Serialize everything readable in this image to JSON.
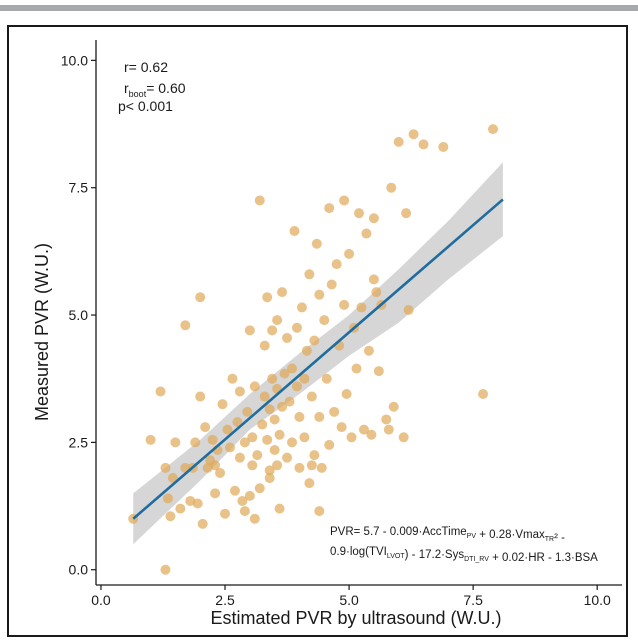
{
  "chart_data": {
    "type": "scatter",
    "title": "",
    "xlabel": "Estimated PVR by ultrasound (W.U.)",
    "ylabel": "Measured PVR (W.U.)",
    "xlim": [
      -0.1,
      10.5
    ],
    "ylim": [
      -0.3,
      10.4
    ],
    "x_ticks": [
      "0.0",
      "2.5",
      "5.0",
      "7.5",
      "10.0"
    ],
    "y_ticks": [
      "0.0",
      "2.5",
      "5.0",
      "7.5",
      "10.0"
    ],
    "x_tick_values": [
      0,
      2.5,
      5,
      7.5,
      10
    ],
    "y_tick_values": [
      0,
      2.5,
      5,
      7.5,
      10
    ],
    "grid": false,
    "colors": {
      "points": "#e0a858",
      "fit_line": "#1f6c9e",
      "ci_band": "#c8c8c8"
    },
    "annotations": {
      "r": "r= 0.62",
      "r_boot_prefix": "r",
      "r_boot_sub": "boot",
      "r_boot_value": "= 0.60",
      "p": "p< 0.001"
    },
    "equation": {
      "line1": [
        {
          "t": "PVR= 5.7 - 0.009·AccTime"
        },
        {
          "t": "PV",
          "sub": true
        },
        {
          "t": " + 0.28·Vmax"
        },
        {
          "t": "TR",
          "sub": true
        },
        {
          "t": "² -"
        }
      ],
      "line2": [
        {
          "t": "0.9·log(TVI"
        },
        {
          "t": "LVOT",
          "sub": true
        },
        {
          "t": ") - 17.2·Sys"
        },
        {
          "t": "DTI_RV",
          "sub": true
        },
        {
          "t": " + 0.02·HR - 1.3·BSA"
        }
      ]
    },
    "regression": {
      "x": [
        0.65,
        8.1
      ],
      "y": [
        1.0,
        7.27
      ]
    },
    "ci_band": {
      "x": [
        0.65,
        2.0,
        3.0,
        4.0,
        5.0,
        6.0,
        7.0,
        8.1
      ],
      "upper": [
        1.5,
        2.55,
        3.45,
        4.25,
        5.0,
        5.9,
        6.85,
        8.0
      ],
      "lower": [
        0.5,
        1.75,
        2.75,
        3.45,
        4.2,
        4.85,
        5.7,
        6.55
      ]
    },
    "points": [
      [
        0.65,
        1.0
      ],
      [
        1.0,
        2.55
      ],
      [
        1.2,
        3.5
      ],
      [
        1.3,
        0.0
      ],
      [
        1.3,
        2.0
      ],
      [
        1.35,
        1.4
      ],
      [
        1.4,
        1.05
      ],
      [
        1.45,
        1.8
      ],
      [
        1.5,
        2.5
      ],
      [
        1.6,
        1.2
      ],
      [
        1.7,
        2.0
      ],
      [
        1.7,
        4.8
      ],
      [
        1.8,
        1.35
      ],
      [
        1.85,
        2.0
      ],
      [
        1.9,
        2.5
      ],
      [
        1.95,
        1.3
      ],
      [
        2.0,
        3.4
      ],
      [
        2.0,
        5.35
      ],
      [
        2.05,
        0.9
      ],
      [
        2.1,
        2.8
      ],
      [
        2.15,
        2.0
      ],
      [
        2.2,
        2.15
      ],
      [
        2.25,
        2.55
      ],
      [
        2.3,
        1.5
      ],
      [
        2.35,
        2.35
      ],
      [
        2.4,
        1.9
      ],
      [
        2.45,
        3.25
      ],
      [
        2.5,
        1.1
      ],
      [
        2.55,
        2.75
      ],
      [
        2.6,
        2.4
      ],
      [
        2.65,
        3.75
      ],
      [
        2.7,
        1.55
      ],
      [
        2.75,
        2.9
      ],
      [
        2.8,
        2.2
      ],
      [
        2.8,
        3.5
      ],
      [
        2.85,
        1.35
      ],
      [
        2.9,
        2.5
      ],
      [
        2.95,
        3.1
      ],
      [
        3.0,
        1.45
      ],
      [
        3.0,
        4.7
      ],
      [
        3.05,
        2.05
      ],
      [
        3.05,
        2.6
      ],
      [
        3.1,
        1.0
      ],
      [
        3.1,
        3.6
      ],
      [
        3.15,
        2.25
      ],
      [
        3.2,
        7.25
      ],
      [
        3.2,
        1.6
      ],
      [
        3.25,
        2.85
      ],
      [
        3.3,
        3.4
      ],
      [
        3.3,
        4.4
      ],
      [
        3.35,
        2.55
      ],
      [
        3.35,
        5.35
      ],
      [
        3.4,
        1.95
      ],
      [
        3.4,
        3.15
      ],
      [
        3.45,
        3.75
      ],
      [
        3.45,
        4.7
      ],
      [
        3.5,
        2.35
      ],
      [
        3.5,
        2.95
      ],
      [
        3.55,
        3.55
      ],
      [
        3.55,
        4.9
      ],
      [
        3.6,
        1.2
      ],
      [
        3.6,
        2.65
      ],
      [
        3.65,
        3.2
      ],
      [
        3.65,
        5.45
      ],
      [
        3.7,
        3.85
      ],
      [
        3.75,
        2.2
      ],
      [
        3.75,
        4.55
      ],
      [
        3.8,
        3.3
      ],
      [
        3.85,
        2.5
      ],
      [
        3.85,
        3.95
      ],
      [
        3.9,
        6.65
      ],
      [
        3.95,
        3.6
      ],
      [
        3.95,
        4.75
      ],
      [
        4.0,
        2.0
      ],
      [
        4.0,
        3.0
      ],
      [
        4.05,
        5.15
      ],
      [
        4.1,
        3.75
      ],
      [
        4.1,
        2.6
      ],
      [
        4.15,
        4.3
      ],
      [
        4.2,
        5.8
      ],
      [
        4.2,
        1.7
      ],
      [
        4.25,
        3.4
      ],
      [
        4.3,
        2.25
      ],
      [
        4.3,
        4.5
      ],
      [
        4.35,
        6.4
      ],
      [
        4.4,
        3.0
      ],
      [
        4.4,
        5.4
      ],
      [
        4.45,
        2.0
      ],
      [
        4.5,
        4.9
      ],
      [
        4.55,
        3.75
      ],
      [
        4.6,
        7.1
      ],
      [
        4.6,
        2.45
      ],
      [
        4.65,
        5.6
      ],
      [
        4.7,
        3.1
      ],
      [
        4.75,
        6.0
      ],
      [
        4.8,
        4.4
      ],
      [
        4.85,
        2.8
      ],
      [
        4.9,
        5.2
      ],
      [
        4.9,
        7.25
      ],
      [
        4.95,
        3.45
      ],
      [
        5.0,
        6.2
      ],
      [
        5.05,
        2.6
      ],
      [
        5.1,
        4.75
      ],
      [
        5.15,
        3.95
      ],
      [
        5.2,
        7.0
      ],
      [
        5.25,
        5.15
      ],
      [
        5.3,
        2.75
      ],
      [
        5.35,
        6.6
      ],
      [
        5.4,
        4.3
      ],
      [
        5.45,
        2.65
      ],
      [
        5.5,
        6.9
      ],
      [
        5.5,
        5.7
      ],
      [
        5.55,
        5.45
      ],
      [
        5.6,
        3.9
      ],
      [
        5.65,
        5.2
      ],
      [
        5.75,
        2.95
      ],
      [
        5.8,
        2.75
      ],
      [
        5.85,
        7.5
      ],
      [
        5.9,
        3.2
      ],
      [
        6.0,
        8.4
      ],
      [
        6.1,
        2.6
      ],
      [
        6.15,
        7.0
      ],
      [
        6.2,
        5.1
      ],
      [
        6.3,
        8.55
      ],
      [
        6.5,
        8.35
      ],
      [
        6.9,
        8.3
      ],
      [
        7.7,
        3.45
      ],
      [
        7.9,
        8.65
      ],
      [
        4.4,
        1.15
      ],
      [
        3.4,
        1.8
      ],
      [
        2.3,
        2.05
      ],
      [
        2.9,
        1.15
      ],
      [
        3.55,
        2.05
      ],
      [
        4.25,
        2.05
      ]
    ]
  }
}
